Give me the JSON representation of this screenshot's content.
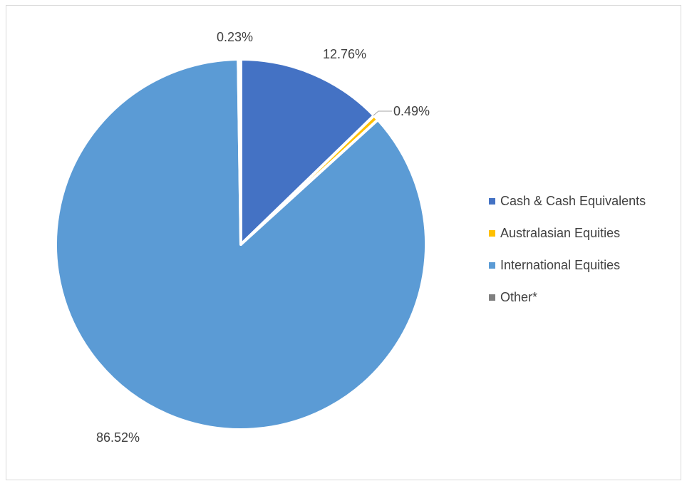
{
  "chart_data": {
    "type": "pie",
    "title": "",
    "categories": [
      "Cash & Cash Equivalents",
      "Australasian Equities",
      "International Equities",
      "Other*"
    ],
    "values": [
      12.76,
      0.49,
      86.52,
      0.23
    ],
    "data_labels": [
      "12.76%",
      "0.49%",
      "86.52%",
      "0.23%"
    ],
    "colors": [
      "#4472C4",
      "#FFC000",
      "#5B9BD5",
      "#7F7F7F"
    ],
    "legend": {
      "position": "right",
      "entries": [
        "Cash & Cash Equivalents",
        "Australasian Equities",
        "International Equities",
        "Other*"
      ]
    },
    "start_angle": "12 o'clock",
    "direction": "clockwise"
  }
}
